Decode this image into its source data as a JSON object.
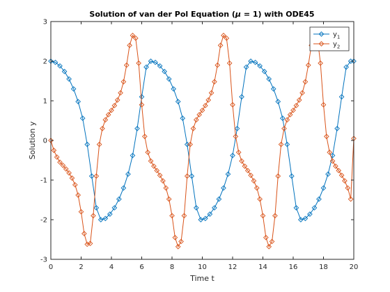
{
  "chart_data": {
    "type": "line",
    "title_prefix": "Solution of van der Pol Equation (",
    "title_symbol": "μ",
    "title_suffix": " = 1) with ODE45",
    "xlabel": "Time t",
    "ylabel": "Solution y",
    "xlim": [
      0,
      20
    ],
    "ylim": [
      -3,
      3
    ],
    "x_ticks": [
      "0",
      "2",
      "4",
      "6",
      "8",
      "10",
      "12",
      "14",
      "16",
      "18",
      "20"
    ],
    "y_ticks": [
      "-3",
      "-2",
      "-1",
      "0",
      "1",
      "2",
      "3"
    ],
    "grid": false,
    "legend_position": "top-right",
    "marker": "diamond",
    "series": [
      {
        "name": "y",
        "subscript": "1",
        "color": "#0072BD",
        "x": [
          0,
          0.3,
          0.6,
          0.9,
          1.2,
          1.5,
          1.8,
          2.1,
          2.4,
          2.7,
          3.0,
          3.3,
          3.6,
          3.9,
          4.2,
          4.5,
          4.8,
          5.1,
          5.4,
          5.7,
          6.0,
          6.3,
          6.6,
          6.9,
          7.2,
          7.5,
          7.8,
          8.1,
          8.4,
          8.7,
          9.0,
          9.3,
          9.6,
          9.9,
          10.2,
          10.5,
          10.8,
          11.1,
          11.4,
          11.7,
          12.0,
          12.3,
          12.6,
          12.9,
          13.2,
          13.5,
          13.8,
          14.1,
          14.4,
          14.7,
          15.0,
          15.3,
          15.6,
          15.9,
          16.2,
          16.5,
          16.8,
          17.1,
          17.4,
          17.7,
          18.0,
          18.3,
          18.6,
          18.9,
          19.2,
          19.5,
          19.8,
          20.0
        ],
        "values": [
          2.0,
          1.97,
          1.88,
          1.74,
          1.55,
          1.3,
          0.98,
          0.56,
          -0.1,
          -0.9,
          -1.7,
          -2.0,
          -1.97,
          -1.86,
          -1.7,
          -1.48,
          -1.2,
          -0.85,
          -0.38,
          0.3,
          1.1,
          1.85,
          2.0,
          1.97,
          1.88,
          1.74,
          1.55,
          1.3,
          0.98,
          0.56,
          -0.1,
          -0.9,
          -1.7,
          -2.0,
          -1.97,
          -1.86,
          -1.7,
          -1.48,
          -1.2,
          -0.85,
          -0.38,
          0.3,
          1.1,
          1.85,
          2.0,
          1.97,
          1.88,
          1.74,
          1.55,
          1.3,
          0.98,
          0.56,
          -0.1,
          -0.9,
          -1.7,
          -2.0,
          -1.97,
          -1.86,
          -1.7,
          -1.48,
          -1.2,
          -0.85,
          -0.38,
          0.3,
          1.1,
          1.85,
          2.0,
          2.0
        ]
      },
      {
        "name": "y",
        "subscript": "2",
        "color": "#D95319",
        "x": [
          0,
          0.2,
          0.4,
          0.6,
          0.8,
          1.0,
          1.2,
          1.4,
          1.6,
          1.8,
          2.0,
          2.2,
          2.4,
          2.6,
          2.8,
          3.0,
          3.2,
          3.4,
          3.6,
          3.8,
          4.0,
          4.2,
          4.4,
          4.6,
          4.8,
          5.0,
          5.2,
          5.4,
          5.6,
          5.8,
          6.0,
          6.2,
          6.4,
          6.6,
          6.8,
          7.0,
          7.2,
          7.4,
          7.6,
          7.8,
          8.0,
          8.2,
          8.4,
          8.6,
          8.8,
          9.0,
          9.2,
          9.4,
          9.6,
          9.8,
          10.0,
          10.2,
          10.4,
          10.6,
          10.8,
          11.0,
          11.2,
          11.4,
          11.6,
          11.8,
          12.0,
          12.2,
          12.4,
          12.6,
          12.8,
          13.0,
          13.2,
          13.4,
          13.6,
          13.8,
          14.0,
          14.2,
          14.4,
          14.6,
          14.8,
          15.0,
          15.2,
          15.4,
          15.6,
          15.8,
          16.0,
          16.2,
          16.4,
          16.6,
          16.8,
          17.0,
          17.2,
          17.4,
          17.6,
          17.8,
          18.0,
          18.2,
          18.4,
          18.6,
          18.8,
          19.0,
          19.2,
          19.4,
          19.6,
          19.8,
          20.0
        ],
        "values": [
          0,
          -0.25,
          -0.42,
          -0.55,
          -0.63,
          -0.72,
          -0.82,
          -0.95,
          -1.12,
          -1.38,
          -1.8,
          -2.35,
          -2.62,
          -2.6,
          -1.9,
          -0.9,
          -0.1,
          0.3,
          0.52,
          0.65,
          0.76,
          0.88,
          1.02,
          1.2,
          1.48,
          1.9,
          2.4,
          2.65,
          2.58,
          1.95,
          0.9,
          0.1,
          -0.3,
          -0.52,
          -0.65,
          -0.76,
          -0.88,
          -1.02,
          -1.2,
          -1.48,
          -1.9,
          -2.45,
          -2.68,
          -2.55,
          -1.9,
          -0.9,
          -0.1,
          0.3,
          0.52,
          0.65,
          0.76,
          0.88,
          1.02,
          1.2,
          1.48,
          1.9,
          2.4,
          2.65,
          2.58,
          1.95,
          0.9,
          0.1,
          -0.3,
          -0.52,
          -0.65,
          -0.76,
          -0.88,
          -1.02,
          -1.2,
          -1.48,
          -1.9,
          -2.45,
          -2.68,
          -2.55,
          -1.9,
          -0.9,
          -0.1,
          0.3,
          0.52,
          0.65,
          0.76,
          0.88,
          1.02,
          1.2,
          1.48,
          1.9,
          2.4,
          2.65,
          2.58,
          1.95,
          0.9,
          0.1,
          -0.3,
          -0.52,
          -0.65,
          -0.76,
          -0.88,
          -1.02,
          -1.2,
          -1.48,
          0.05
        ]
      }
    ]
  }
}
